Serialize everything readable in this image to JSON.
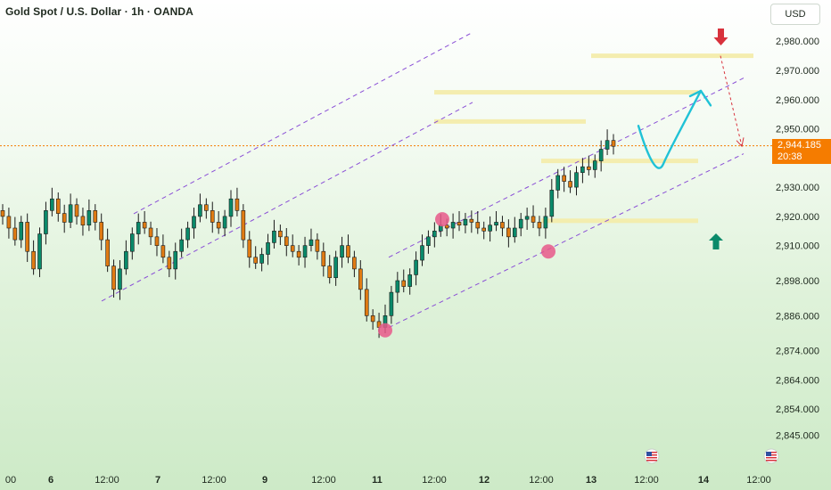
{
  "header": {
    "title": "Gold Spot / U.S. Dollar · 1h · OANDA"
  },
  "toolbar": {
    "currency_label": "USD"
  },
  "last_price": {
    "value": "2,944.185",
    "countdown": "20:38"
  },
  "colors": {
    "up": "#0a8a6a",
    "down": "#e07b13",
    "channel": "#8a4fd6",
    "zone": "#f3ecab",
    "projection": "#20c2d6",
    "arrow_up": "#0a8a6a",
    "arrow_down": "#d8323c",
    "marker": "#e8588a",
    "price_line": "#f57c00"
  },
  "icons": [
    "us-flag-event-icon",
    "us-flag-event-icon",
    "arrow-up-icon",
    "arrow-down-icon"
  ],
  "chart_data": {
    "type": "candlestick",
    "symbol": "Gold Spot / U.S. Dollar",
    "interval": "1h",
    "ylim": [
      2840,
      2988
    ],
    "y_ticks": [
      "2,980.000",
      "2,970.000",
      "2,960.000",
      "2,950.000",
      "2,930.000",
      "2,920.000",
      "2,910.000",
      "2,898.000",
      "2,886.000",
      "2,874.000",
      "2,864.000",
      "2,854.000",
      "2,845.000"
    ],
    "x_ticks": [
      "00",
      "6",
      "12:00",
      "7",
      "12:00",
      "9",
      "12:00",
      "11",
      "12:00",
      "12",
      "12:00",
      "13",
      "12:00",
      "14",
      "12:00"
    ],
    "x_ticks_bold": [
      "6",
      "7",
      "9",
      "11",
      "12",
      "13",
      "14"
    ],
    "candle_closes": [
      2920,
      2916,
      2912,
      2918,
      2908,
      2902,
      2914,
      2922,
      2926,
      2921,
      2918,
      2924,
      2920,
      2917,
      2922,
      2918,
      2912,
      2903,
      2895,
      2902,
      2908,
      2914,
      2918,
      2916,
      2913,
      2910,
      2906,
      2902,
      2908,
      2912,
      2916,
      2920,
      2924,
      2922,
      2918,
      2916,
      2920,
      2926,
      2922,
      2912,
      2906,
      2904,
      2907,
      2911,
      2915,
      2913,
      2910,
      2908,
      2906,
      2910,
      2912,
      2908,
      2903,
      2899,
      2906,
      2910,
      2906,
      2902,
      2895,
      2886,
      2884,
      2882,
      2886,
      2894,
      2898,
      2896,
      2900,
      2905,
      2910,
      2913,
      2915,
      2917,
      2916,
      2918,
      2917,
      2919,
      2918,
      2916,
      2915,
      2917,
      2918,
      2916,
      2913,
      2916,
      2919,
      2920,
      2918,
      2916,
      2920,
      2929,
      2934,
      2932,
      2930,
      2935,
      2937,
      2936,
      2939,
      2943,
      2946,
      2944
    ],
    "last_price": 2944.185,
    "channels": [
      {
        "from": [
          "6 12:00",
          2892
        ],
        "to": [
          "11 12:00",
          2952
        ]
      },
      {
        "from": [
          "6 12:00",
          2916
        ],
        "to": [
          "11 12:00",
          2976
        ]
      },
      {
        "from": [
          "11",
          2880
        ],
        "to": [
          "14 12:00",
          2944
        ]
      },
      {
        "from": [
          "11",
          2904
        ],
        "to": [
          "14 12:00",
          2970
        ]
      }
    ],
    "zones": [
      {
        "price": 2975,
        "from": "13",
        "to": "14 12:00"
      },
      {
        "price": 2962.5,
        "from": "11 12:00",
        "to": "14"
      },
      {
        "price": 2952.5,
        "from": "11 12:00",
        "to": "13"
      },
      {
        "price": 2939,
        "from": "12 12:00",
        "to": "14"
      },
      {
        "price": 2918.5,
        "from": "12 12:00",
        "to": "14"
      }
    ],
    "projection_path": [
      2951,
      2942,
      2938,
      2949,
      2963,
      2958
    ],
    "annotations": [
      {
        "type": "arrow-up",
        "near_price": 2911
      },
      {
        "type": "arrow-down",
        "near_price": 2983
      },
      {
        "type": "marker",
        "price": 2881
      },
      {
        "type": "marker",
        "price": 2919
      },
      {
        "type": "marker",
        "price": 2908
      }
    ]
  }
}
